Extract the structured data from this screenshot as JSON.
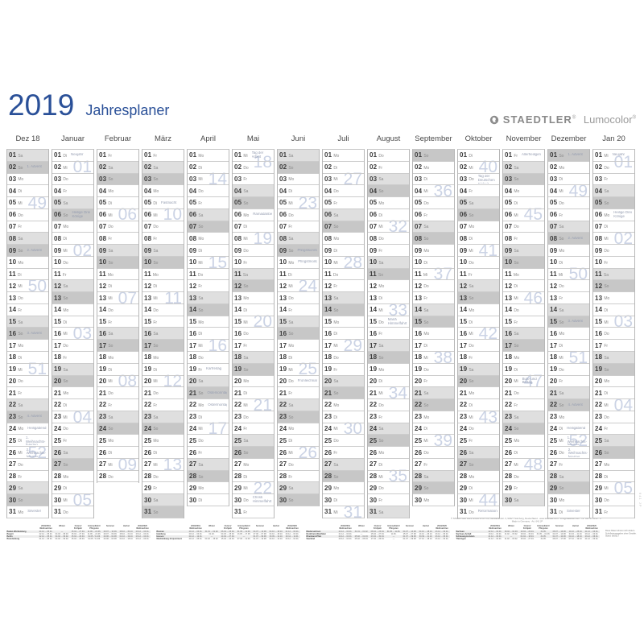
{
  "title": {
    "year": "2019",
    "subtitle": "Jahresplaner"
  },
  "brand": {
    "name": "STAEDTLER",
    "product": "Lumocolor",
    "registered_mark": "®"
  },
  "colors": {
    "accent": "#2a5098",
    "weekend_saturday": "#dfdfdf",
    "weekend_sunday": "#c7c7c7",
    "week_number": "#cbd3e5",
    "holiday_text": "#949cb0"
  },
  "edge_code": "641 JP",
  "months": [
    {
      "label": "Dez 18",
      "days": [
        "Sa",
        "So",
        "Mo",
        "Di",
        "Mi",
        "Do",
        "Fr",
        "Sa",
        "So",
        "Mo",
        "Di",
        "Mi",
        "Do",
        "Fr",
        "Sa",
        "So",
        "Mo",
        "Di",
        "Mi",
        "Do",
        "Fr",
        "Sa",
        "So",
        "Mo",
        "Di",
        "Mi",
        "Do",
        "Fr",
        "Sa",
        "So",
        "Mo"
      ],
      "holidays": {
        "2": "1. Advent",
        "9": "2. Advent",
        "16": "3. Advent",
        "23": "4. Advent",
        "24": "Heiligabend",
        "25": "1. Weihnachts- feiertag",
        "26": "2. Weihnachts- feiertag",
        "31": "Silvester"
      },
      "weeks": [
        [
          5,
          "49"
        ],
        [
          12,
          "50"
        ],
        [
          19,
          "51"
        ],
        [
          26,
          "52"
        ]
      ]
    },
    {
      "label": "Januar",
      "days": [
        "Di",
        "Mi",
        "Do",
        "Fr",
        "Sa",
        "So",
        "Mo",
        "Di",
        "Mi",
        "Do",
        "Fr",
        "Sa",
        "So",
        "Mo",
        "Di",
        "Mi",
        "Do",
        "Fr",
        "Sa",
        "So",
        "Mo",
        "Di",
        "Mi",
        "Do",
        "Fr",
        "Sa",
        "So",
        "Mo",
        "Di",
        "Mi",
        "Do"
      ],
      "holidays": {
        "1": "Neujahr",
        "6": "Heilige Drei Könige"
      },
      "weeks": [
        [
          2,
          "01"
        ],
        [
          9,
          "02"
        ],
        [
          16,
          "03"
        ],
        [
          23,
          "04"
        ],
        [
          30,
          "05"
        ]
      ]
    },
    {
      "label": "Februar",
      "days": [
        "Fr",
        "Sa",
        "So",
        "Mo",
        "Di",
        "Mi",
        "Do",
        "Fr",
        "Sa",
        "So",
        "Mo",
        "Di",
        "Mi",
        "Do",
        "Fr",
        "Sa",
        "So",
        "Mo",
        "Di",
        "Mi",
        "Do",
        "Fr",
        "Sa",
        "So",
        "Mo",
        "Di",
        "Mi",
        "Do"
      ],
      "holidays": {},
      "weeks": [
        [
          6,
          "06"
        ],
        [
          13,
          "07"
        ],
        [
          20,
          "08"
        ],
        [
          27,
          "09"
        ]
      ]
    },
    {
      "label": "März",
      "days": [
        "Fr",
        "Sa",
        "So",
        "Mo",
        "Di",
        "Mi",
        "Do",
        "Fr",
        "Sa",
        "So",
        "Mo",
        "Di",
        "Mi",
        "Do",
        "Fr",
        "Sa",
        "So",
        "Mo",
        "Di",
        "Mi",
        "Do",
        "Fr",
        "Sa",
        "So",
        "Mo",
        "Di",
        "Mi",
        "Do",
        "Fr",
        "Sa",
        "So"
      ],
      "holidays": {
        "5": "Fastnacht"
      },
      "weeks": [
        [
          6,
          "10"
        ],
        [
          13,
          "11"
        ],
        [
          20,
          "12"
        ],
        [
          27,
          "13"
        ]
      ]
    },
    {
      "label": "April",
      "days": [
        "Mo",
        "Di",
        "Mi",
        "Do",
        "Fr",
        "Sa",
        "So",
        "Mo",
        "Di",
        "Mi",
        "Do",
        "Fr",
        "Sa",
        "So",
        "Mo",
        "Di",
        "Mi",
        "Do",
        "Fr",
        "Sa",
        "So",
        "Mo",
        "Di",
        "Mi",
        "Do",
        "Fr",
        "Sa",
        "So",
        "Mo",
        "Di"
      ],
      "holidays": {
        "19": "Karfreitag",
        "21": "Ostersonntag",
        "22": "Ostermontag"
      },
      "weeks": [
        [
          3,
          "14"
        ],
        [
          10,
          "15"
        ],
        [
          17,
          "16"
        ],
        [
          24,
          "17"
        ]
      ]
    },
    {
      "label": "Mai",
      "days": [
        "Mi",
        "Do",
        "Fr",
        "Sa",
        "So",
        "Mo",
        "Di",
        "Mi",
        "Do",
        "Fr",
        "Sa",
        "So",
        "Mo",
        "Di",
        "Mi",
        "Do",
        "Fr",
        "Sa",
        "So",
        "Mo",
        "Di",
        "Mi",
        "Do",
        "Fr",
        "Sa",
        "So",
        "Mo",
        "Di",
        "Mi",
        "Do",
        "Fr"
      ],
      "holidays": {
        "1": "Tag der Arbeit",
        "6": "Ramadanbeginn",
        "30": "Christi Himmelfahrt"
      },
      "weeks": [
        [
          1,
          "18"
        ],
        [
          8,
          "19"
        ],
        [
          15,
          "20"
        ],
        [
          22,
          "21"
        ],
        [
          29,
          "22"
        ]
      ]
    },
    {
      "label": "Juni",
      "days": [
        "Sa",
        "So",
        "Mo",
        "Di",
        "Mi",
        "Do",
        "Fr",
        "Sa",
        "So",
        "Mo",
        "Di",
        "Mi",
        "Do",
        "Fr",
        "Sa",
        "So",
        "Mo",
        "Di",
        "Mi",
        "Do",
        "Fr",
        "Sa",
        "So",
        "Mo",
        "Di",
        "Mi",
        "Do",
        "Fr",
        "Sa",
        "So"
      ],
      "holidays": {
        "9": "Pfingstsonntag",
        "10": "Pfingstmontag",
        "20": "Fronleichnam"
      },
      "weeks": [
        [
          5,
          "23"
        ],
        [
          12,
          "24"
        ],
        [
          19,
          "25"
        ],
        [
          26,
          "26"
        ]
      ]
    },
    {
      "label": "Juli",
      "days": [
        "Mo",
        "Di",
        "Mi",
        "Do",
        "Fr",
        "Sa",
        "So",
        "Mo",
        "Di",
        "Mi",
        "Do",
        "Fr",
        "Sa",
        "So",
        "Mo",
        "Di",
        "Mi",
        "Do",
        "Fr",
        "Sa",
        "So",
        "Mo",
        "Di",
        "Mi",
        "Do",
        "Fr",
        "Sa",
        "So",
        "Mo",
        "Di",
        "Mi"
      ],
      "holidays": {},
      "weeks": [
        [
          3,
          "27"
        ],
        [
          10,
          "28"
        ],
        [
          17,
          "29"
        ],
        [
          24,
          "30"
        ],
        [
          31,
          "31"
        ]
      ]
    },
    {
      "label": "August",
      "days": [
        "Do",
        "Fr",
        "Sa",
        "So",
        "Mo",
        "Di",
        "Mi",
        "Do",
        "Fr",
        "Sa",
        "So",
        "Mo",
        "Di",
        "Mi",
        "Do",
        "Fr",
        "Sa",
        "So",
        "Mo",
        "Di",
        "Mi",
        "Do",
        "Fr",
        "Sa",
        "So",
        "Mo",
        "Di",
        "Mi",
        "Do",
        "Fr",
        "Sa"
      ],
      "holidays": {
        "15": "Mariä Himmelfahrt"
      },
      "weeks": [
        [
          7,
          "32"
        ],
        [
          14,
          "33"
        ],
        [
          21,
          "34"
        ],
        [
          28,
          "35"
        ]
      ]
    },
    {
      "label": "September",
      "days": [
        "So",
        "Mo",
        "Di",
        "Mi",
        "Do",
        "Fr",
        "Sa",
        "So",
        "Mo",
        "Di",
        "Mi",
        "Do",
        "Fr",
        "Sa",
        "So",
        "Mo",
        "Di",
        "Mi",
        "Do",
        "Fr",
        "Sa",
        "So",
        "Mo",
        "Di",
        "Mi",
        "Do",
        "Fr",
        "Sa",
        "So",
        "Mo"
      ],
      "holidays": {},
      "weeks": [
        [
          4,
          "36"
        ],
        [
          11,
          "37"
        ],
        [
          18,
          "38"
        ],
        [
          25,
          "39"
        ]
      ]
    },
    {
      "label": "Oktober",
      "days": [
        "Di",
        "Mi",
        "Do",
        "Fr",
        "Sa",
        "So",
        "Mo",
        "Di",
        "Mi",
        "Do",
        "Fr",
        "Sa",
        "So",
        "Mo",
        "Di",
        "Mi",
        "Do",
        "Fr",
        "Sa",
        "So",
        "Mo",
        "Di",
        "Mi",
        "Do",
        "Fr",
        "Sa",
        "So",
        "Mo",
        "Di",
        "Mi",
        "Do"
      ],
      "holidays": {
        "3": "Tag der Deutschen Einheit",
        "31": "Reformationstag"
      },
      "weeks": [
        [
          2,
          "40"
        ],
        [
          9,
          "41"
        ],
        [
          16,
          "42"
        ],
        [
          23,
          "43"
        ],
        [
          30,
          "44"
        ]
      ]
    },
    {
      "label": "November",
      "days": [
        "Fr",
        "Sa",
        "So",
        "Mo",
        "Di",
        "Mi",
        "Do",
        "Fr",
        "Sa",
        "So",
        "Mo",
        "Di",
        "Mi",
        "Do",
        "Fr",
        "Sa",
        "So",
        "Mo",
        "Di",
        "Mi",
        "Do",
        "Fr",
        "Sa",
        "So",
        "Mo",
        "Di",
        "Mi",
        "Do",
        "Fr",
        "Sa"
      ],
      "holidays": {
        "1": "Allerheiligen",
        "20": "Buß- und Bettag"
      },
      "weeks": [
        [
          6,
          "45"
        ],
        [
          13,
          "46"
        ],
        [
          20,
          "47"
        ],
        [
          27,
          "48"
        ]
      ]
    },
    {
      "label": "Dezember",
      "days": [
        "So",
        "Mo",
        "Di",
        "Mi",
        "Do",
        "Fr",
        "Sa",
        "So",
        "Mo",
        "Di",
        "Mi",
        "Do",
        "Fr",
        "Sa",
        "So",
        "Mo",
        "Di",
        "Mi",
        "Do",
        "Fr",
        "Sa",
        "So",
        "Mo",
        "Di",
        "Mi",
        "Do",
        "Fr",
        "Sa",
        "So",
        "Mo",
        "Di"
      ],
      "holidays": {
        "1": "1. Advent",
        "8": "2. Advent",
        "15": "3. Advent",
        "22": "4. Advent",
        "24": "Heiligabend",
        "25": "1. Weihnachts- feiertag",
        "26": "2. Weihnachts- feiertag",
        "31": "Silvester"
      },
      "weeks": [
        [
          4,
          "49"
        ],
        [
          11,
          "50"
        ],
        [
          18,
          "51"
        ],
        [
          25,
          "52"
        ]
      ]
    },
    {
      "label": "Jan 20",
      "days": [
        "Mi",
        "Do",
        "Fr",
        "Sa",
        "So",
        "Mo",
        "Di",
        "Mi",
        "Do",
        "Fr",
        "Sa",
        "So",
        "Mo",
        "Di",
        "Mi",
        "Do",
        "Fr",
        "Sa",
        "So",
        "Mo",
        "Di",
        "Mi",
        "Do",
        "Fr",
        "Sa",
        "So",
        "Mo",
        "Di",
        "Mi",
        "Do",
        "Fr"
      ],
      "holidays": {
        "1": "Neujahr",
        "6": "Heilige Drei Könige"
      },
      "weeks": [
        [
          1,
          "01"
        ],
        [
          8,
          "02"
        ],
        [
          15,
          "03"
        ],
        [
          22,
          "04"
        ],
        [
          29,
          "05"
        ]
      ]
    }
  ],
  "ferien": {
    "column_headers": [
      "2018/2019\nWeihnachten",
      "Winter",
      "Ostern/\nFrühjahr",
      "Himmelfahrt/\nPfingsten",
      "Sommer",
      "Herbst",
      "2019/2020\nWeihnachten"
    ],
    "blocks": [
      {
        "rows": [
          {
            "state": "Baden-Württemberg",
            "dates": [
              "24.12. – 05.01.",
              "—",
              "15.04. – 27.04.",
              "11.06. – 21.06.",
              "29.07. – 10.09.",
              "28.10. – 30.10.",
              "23.12. – 04.01."
            ]
          },
          {
            "state": "Bayern",
            "dates": [
              "22.12. – 05.01.",
              "04.03. – 08.03.",
              "15.04. – 27.04.",
              "11.06. – 21.06.",
              "29.07. – 09.09.",
              "28.10. – 31.10.",
              "23.12. – 04.01."
            ]
          },
          {
            "state": "Berlin",
            "dates": [
              "22.12. – 05.01.",
              "04.02. – 09.02.",
              "15.04. – 26.04.",
              "31.05. / 11.06.",
              "20.06. – 02.08.",
              "04.10. – 19.10.",
              "23.12. – 04.01."
            ]
          },
          {
            "state": "Brandenburg",
            "dates": [
              "21.12. – 05.01.",
              "04.02. – 09.02.",
              "15.04. – 26.04.",
              "31.05. / 11.06.",
              "20.06. – 03.08.",
              "04.10. – 18.10.",
              "23.12. – 03.01."
            ]
          }
        ]
      },
      {
        "rows": [
          {
            "state": "Bremen",
            "dates": [
              "24.12. – 04.01.",
              "31.01. – 01.02.",
              "06.04. – 23.04.",
              "31.05. – 11.06.",
              "04.07. – 14.08.",
              "04.10. – 18.10.",
              "21.12. – 06.01."
            ]
          },
          {
            "state": "Hamburg",
            "dates": [
              "20.12. – 04.01.",
              "01.02.",
              "04.03. – 15.03.",
              "13.05. – 17.05.",
              "27.06. – 07.08.",
              "04.10. – 18.10.",
              "23.12. – 03.01."
            ]
          },
          {
            "state": "Hessen",
            "dates": [
              "24.12. – 12.01.",
              "—",
              "14.04. – 27.04.",
              "—",
              "01.07. – 09.08.",
              "30.09. – 12.10.",
              "23.12. – 11.01."
            ]
          },
          {
            "state": "Mecklenburg-Vorpommern",
            "dates": [
              "24.12. – 05.01.",
              "04.02. – 15.02.",
              "15.04. – 24.04.",
              "07.06. – 11.06.",
              "01.07. – 10.08.",
              "04.10. – 12.10.",
              "23.12. – 04.01."
            ]
          }
        ]
      },
      {
        "rows": [
          {
            "state": "Niedersachsen",
            "dates": [
              "24.12. – 04.01.",
              "31.01. – 01.02.",
              "08.04. – 23.04.",
              "31.05. – 11.06.",
              "04.07. – 14.08.",
              "04.10. – 18.10.",
              "23.12. – 06.01."
            ]
          },
          {
            "state": "Nordrhein-Westfalen",
            "dates": [
              "21.12. – 04.01.",
              "—",
              "15.04. – 27.04.",
              "11.06.",
              "15.07. – 27.08.",
              "14.10. – 26.10.",
              "23.12. – 06.01."
            ]
          },
          {
            "state": "Rheinland-Pfalz",
            "dates": [
              "20.12. – 04.01.",
              "25.02. – 01.03.",
              "23.04. – 30.04.",
              "—",
              "01.07. – 09.08.",
              "30.09. – 11.10.",
              "23.12. – 06.01."
            ]
          },
          {
            "state": "Saarland",
            "dates": [
              "20.12. – 04.01.",
              "25.02. – 05.03.",
              "17.04. – 26.04.",
              "—",
              "01.07. – 09.08.",
              "07.10. – 18.10.",
              "23.12. – 03.01."
            ]
          }
        ]
      },
      {
        "rows": [
          {
            "state": "Sachsen",
            "dates": [
              "22.12. – 04.01.",
              "18.02. – 02.03.",
              "19.04. – 26.04.",
              "31.05.",
              "08.07. – 16.08.",
              "14.10. – 25.10.",
              "21.12. – 03.01."
            ]
          },
          {
            "state": "Sachsen-Anhalt",
            "dates": [
              "19.12. – 04.01.",
              "11.02. – 15.02.",
              "18.04. – 30.04.",
              "31.05. – 01.06.",
              "04.07. – 14.08.",
              "04.10. – 11.10.",
              "23.12. – 04.01."
            ]
          },
          {
            "state": "Schleswig-Holstein",
            "dates": [
              "21.12. – 04.01.",
              "—",
              "04.04. – 18.04.",
              "31.05.",
              "01.07. – 10.08.",
              "04.10. – 18.10.",
              "23.12. – 06.01."
            ]
          },
          {
            "state": "Thüringen",
            "dates": [
              "21.12. – 04.01.",
              "11.02. – 15.02.",
              "15.04. – 27.04.",
              "31.05.",
              "08.07. – 17.08.",
              "07.10. – 19.10.",
              "21.12. – 03.01."
            ]
          }
        ]
      }
    ],
    "note_lines": [
      "Diese Daten können sich ändern.",
      "Schulferienangaben ohne Gewähr.",
      "Stand: 08/2017"
    ]
  },
  "imprint_lines": [
    "© STAEDTLER Mars GmbH & Co. KG, Moosäckerstr. 3, 90427 Nürnberg, Deutschland · www.staedtler.com · info@staedtler.com · Nr. 641 JP 2019 · 4",
    "Made in Germany · Art. 641 JP"
  ]
}
